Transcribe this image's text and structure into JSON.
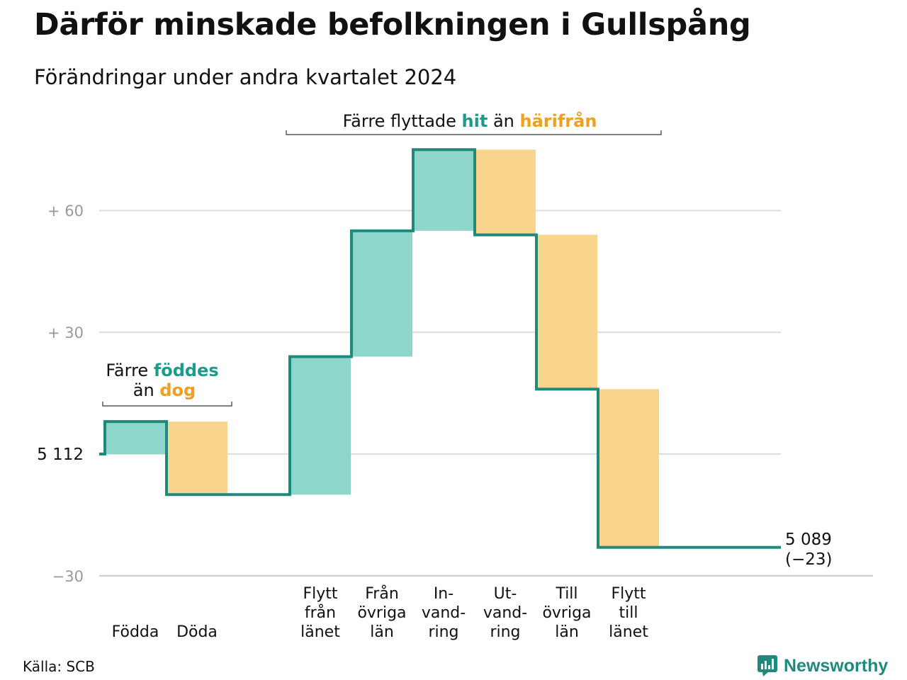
{
  "title": "Därför minskade befolkningen i Gullspång",
  "subtitle": "Förändringar under andra kvartalet 2024",
  "source": "Källa: SCB",
  "logo": {
    "text": "Newsworthy",
    "icon": "chart-bubble-icon"
  },
  "colors": {
    "in": "#8ed5cc",
    "out": "#f9d48c",
    "line": "#1f8a7c",
    "in_text": "#1f9a8a",
    "out_text": "#f0a020",
    "grid": "#dddddd",
    "axis": "#cccccc",
    "tick": "#999999"
  },
  "annotations": {
    "births": {
      "line1_pre": "Färre ",
      "line1_hi": "föddes",
      "line2_pre": "än ",
      "line2_hi": "dog"
    },
    "moves": {
      "pre": "Färre flyttade ",
      "hi1": "hit",
      "mid": " än ",
      "hi2": "härifrån"
    }
  },
  "chart_data": {
    "type": "waterfall",
    "title": "Därför minskade befolkningen i Gullspång",
    "subtitle": "Förändringar under andra kvartalet 2024",
    "start_value": 5112,
    "start_label": "5 112",
    "end_value": 5089,
    "end_label": "5 089",
    "end_change_label": "(−23)",
    "y_ticks": [
      {
        "value": -30,
        "label": "−30"
      },
      {
        "value": 0,
        "label": "5 112"
      },
      {
        "value": 30,
        "label": "+ 30"
      },
      {
        "value": 60,
        "label": "+ 60"
      }
    ],
    "ylim": [
      -30,
      80
    ],
    "grid": true,
    "categories": [
      {
        "label": [
          "Födda"
        ],
        "kind": "in",
        "value": 8
      },
      {
        "label": [
          "Döda"
        ],
        "kind": "out",
        "value": -18
      },
      {
        "label": [],
        "kind": "gap",
        "value": 0
      },
      {
        "label": [
          "Flytt",
          "från",
          "länet"
        ],
        "kind": "in",
        "value": 34
      },
      {
        "label": [
          "Från",
          "övriga",
          "län"
        ],
        "kind": "in",
        "value": 31
      },
      {
        "label": [
          "In-",
          "vand-",
          "ring"
        ],
        "kind": "in",
        "value": 20
      },
      {
        "label": [
          "Ut-",
          "vand-",
          "ring"
        ],
        "kind": "out",
        "value": -21
      },
      {
        "label": [
          "Till",
          "övriga",
          "län"
        ],
        "kind": "out",
        "value": -38
      },
      {
        "label": [
          "Flytt",
          "till",
          "länet"
        ],
        "kind": "out",
        "value": -39
      }
    ]
  }
}
